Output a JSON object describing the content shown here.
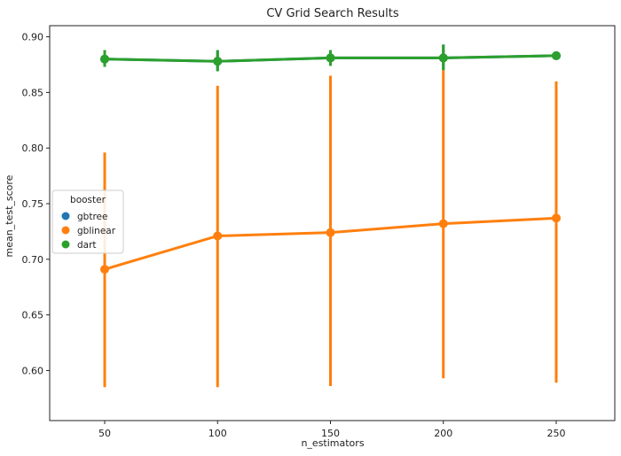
{
  "chart_data": {
    "type": "line",
    "title": "CV Grid Search Results",
    "xlabel": "n_estimators",
    "ylabel": "mean_test_score",
    "categories": [
      "50",
      "100",
      "150",
      "200",
      "250"
    ],
    "ylim": [
      0.555,
      0.91
    ],
    "yticks": [
      "0.60",
      "0.65",
      "0.70",
      "0.75",
      "0.80",
      "0.85",
      "0.90"
    ],
    "grid": false,
    "legend": {
      "title": "booster",
      "placement": "center-left",
      "entries": [
        "gbtree",
        "gblinear",
        "dart"
      ]
    },
    "series": [
      {
        "name": "gbtree",
        "color": "#1f77b4",
        "values": [
          0.88,
          0.878,
          0.881,
          0.881,
          0.883
        ],
        "ci_low": [
          0.873,
          0.869,
          0.874,
          0.87,
          0.883
        ],
        "ci_high": [
          0.888,
          0.888,
          0.888,
          0.893,
          0.883
        ]
      },
      {
        "name": "gblinear",
        "color": "#ff7f0e",
        "values": [
          0.691,
          0.721,
          0.724,
          0.732,
          0.737
        ],
        "ci_low": [
          0.585,
          0.585,
          0.586,
          0.593,
          0.589
        ],
        "ci_high": [
          0.796,
          0.856,
          0.865,
          0.87,
          0.86
        ]
      },
      {
        "name": "dart",
        "color": "#2ca02c",
        "values": [
          0.88,
          0.878,
          0.881,
          0.881,
          0.883
        ],
        "ci_low": [
          0.873,
          0.869,
          0.874,
          0.87,
          0.883
        ],
        "ci_high": [
          0.888,
          0.888,
          0.888,
          0.893,
          0.883
        ]
      }
    ]
  }
}
